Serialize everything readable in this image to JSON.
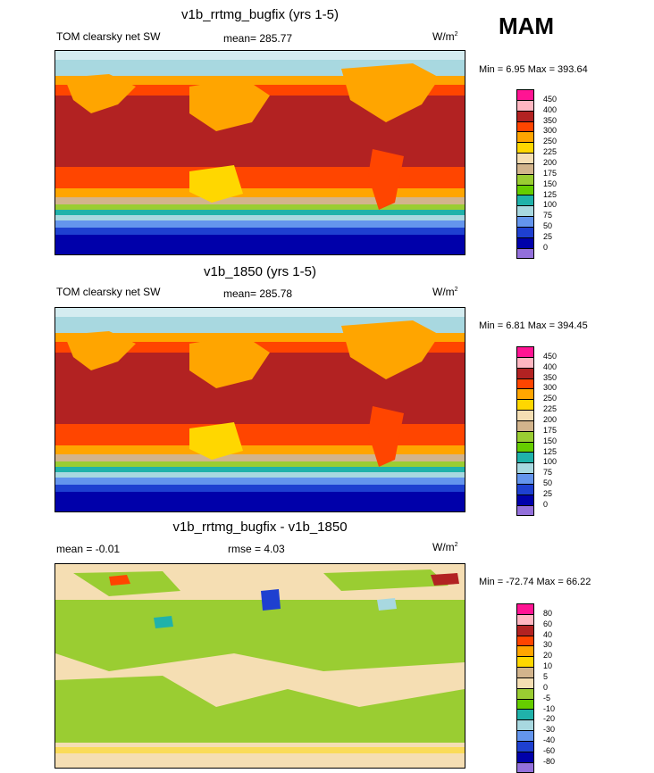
{
  "season": "MAM",
  "panels": [
    {
      "title": "v1b_rrtmg_bugfix (yrs 1-5)",
      "left_text": "TOM clearsky net SW",
      "mean_text": "mean= 285.77",
      "units_base": "W/m",
      "units_sup": "2",
      "minmax": "Min =   6.95 Max = 393.64",
      "colorbar": {
        "labels": [
          "450",
          "400",
          "350",
          "300",
          "250",
          "225",
          "200",
          "175",
          "150",
          "125",
          "100",
          "75",
          "50",
          "25",
          "0"
        ],
        "colors": [
          "#ff1493",
          "#ffb6c1",
          "#b22222",
          "#ff4500",
          "#ffa500",
          "#ffd700",
          "#f5deb3",
          "#d2b48c",
          "#9acd32",
          "#66cd00",
          "#20b2aa",
          "#a8d8e0",
          "#6495ed",
          "#1e40d0",
          "#0000aa",
          "#9370db"
        ]
      }
    },
    {
      "title": "v1b_1850 (yrs 1-5)",
      "left_text": "TOM clearsky net SW",
      "mean_text": "mean= 285.78",
      "units_base": "W/m",
      "units_sup": "2",
      "minmax": "Min =   6.81 Max = 394.45",
      "colorbar": {
        "labels": [
          "450",
          "400",
          "350",
          "300",
          "250",
          "225",
          "200",
          "175",
          "150",
          "125",
          "100",
          "75",
          "50",
          "25",
          "0"
        ],
        "colors": [
          "#ff1493",
          "#ffb6c1",
          "#b22222",
          "#ff4500",
          "#ffa500",
          "#ffd700",
          "#f5deb3",
          "#d2b48c",
          "#9acd32",
          "#66cd00",
          "#20b2aa",
          "#a8d8e0",
          "#6495ed",
          "#1e40d0",
          "#0000aa",
          "#9370db"
        ]
      }
    },
    {
      "title": "v1b_rrtmg_bugfix - v1b_1850",
      "left_text": "mean =  -0.01",
      "mean_text": "rmse =    4.03",
      "units_base": "W/m",
      "units_sup": "2",
      "minmax": "Min = -72.74 Max =  66.22",
      "colorbar": {
        "labels": [
          "80",
          "60",
          "40",
          "30",
          "20",
          "10",
          "5",
          "0",
          "-5",
          "-10",
          "-20",
          "-30",
          "-40",
          "-60",
          "-80"
        ],
        "colors": [
          "#ff1493",
          "#ffb6c1",
          "#b22222",
          "#ff4500",
          "#ffa500",
          "#ffd700",
          "#d2b48c",
          "#f5deb3",
          "#9acd32",
          "#66cd00",
          "#20b2aa",
          "#a8d8e0",
          "#6495ed",
          "#1e40d0",
          "#0000aa",
          "#9370db"
        ]
      }
    }
  ],
  "chart_data": {
    "type": "heatmap",
    "description_fields": {
      "variable": "TOM clearsky net SW",
      "units": "W/m2",
      "season": "MAM"
    },
    "panels": [
      {
        "title": "v1b_rrtmg_bugfix (yrs 1-5)",
        "mean": 285.77,
        "min": 6.95,
        "max": 393.64,
        "levels": [
          0,
          25,
          50,
          75,
          100,
          125,
          150,
          175,
          200,
          225,
          250,
          300,
          350,
          400,
          450
        ]
      },
      {
        "title": "v1b_1850 (yrs 1-5)",
        "mean": 285.78,
        "min": 6.81,
        "max": 394.45,
        "levels": [
          0,
          25,
          50,
          75,
          100,
          125,
          150,
          175,
          200,
          225,
          250,
          300,
          350,
          400,
          450
        ]
      },
      {
        "title": "v1b_rrtmg_bugfix - v1b_1850",
        "mean": -0.01,
        "rmse": 4.03,
        "min": -72.74,
        "max": 66.22,
        "levels": [
          -80,
          -60,
          -40,
          -30,
          -20,
          -10,
          -5,
          0,
          5,
          10,
          20,
          30,
          40,
          60,
          80
        ]
      }
    ]
  }
}
